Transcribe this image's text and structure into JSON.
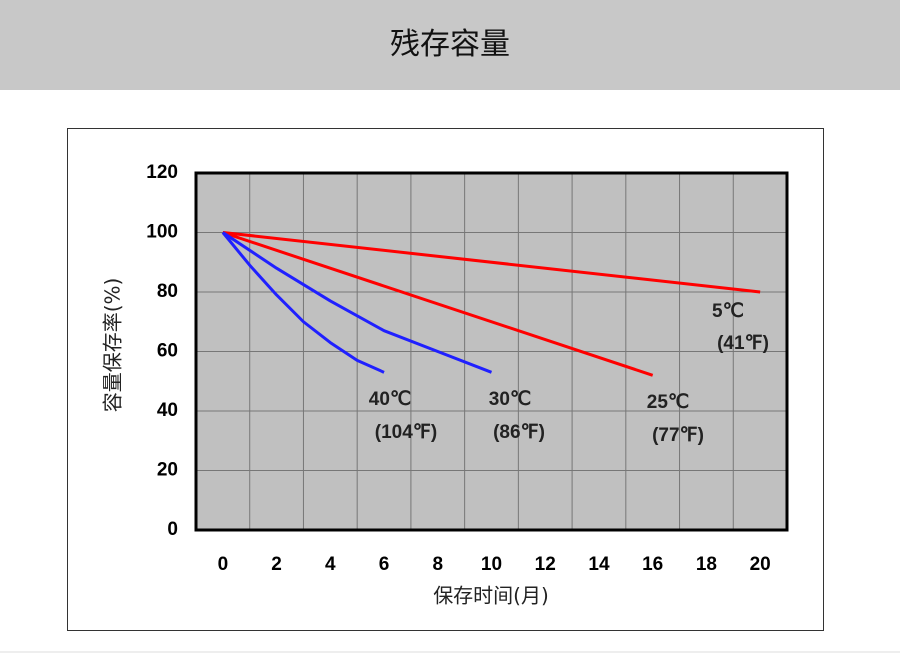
{
  "header": {
    "title": "残存容量"
  },
  "chart_data": {
    "type": "line",
    "xlabel": "保存时间(月)",
    "ylabel": "容量保存率(%)",
    "xlim": [
      -1,
      21
    ],
    "ylim": [
      0,
      120
    ],
    "xticks": [
      0,
      2,
      4,
      6,
      8,
      10,
      12,
      14,
      16,
      18,
      20
    ],
    "yticks": [
      0,
      20,
      40,
      60,
      80,
      100,
      120
    ],
    "xgrid": [
      1,
      3,
      5,
      7,
      9,
      11,
      13,
      15,
      17,
      19
    ],
    "grid": true,
    "series": [
      {
        "name": "5℃",
        "sublabel": "(41℉)",
        "color": "#ff0000",
        "x": [
          0,
          20
        ],
        "values": [
          100,
          80
        ]
      },
      {
        "name": "25℃",
        "sublabel": "(77℉)",
        "color": "#ff0000",
        "x": [
          0,
          16
        ],
        "values": [
          100,
          52
        ]
      },
      {
        "name": "30℃",
        "sublabel": "(86℉)",
        "color": "#2020ff",
        "x": [
          0,
          2,
          4,
          6,
          8,
          10
        ],
        "values": [
          100,
          88,
          77,
          67,
          60,
          53
        ]
      },
      {
        "name": "40℃",
        "sublabel": "(104℉)",
        "color": "#2020ff",
        "x": [
          0,
          1,
          2,
          3,
          4,
          5,
          6
        ],
        "values": [
          100,
          89,
          79,
          70,
          63,
          57,
          53
        ]
      }
    ]
  }
}
